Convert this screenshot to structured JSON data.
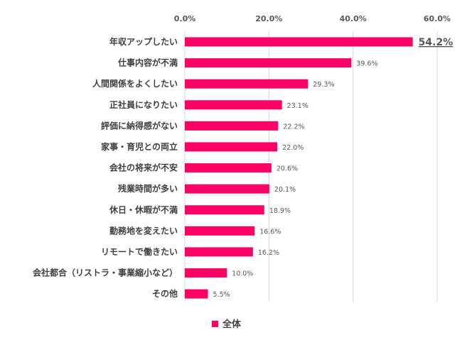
{
  "chart_data": {
    "type": "bar",
    "orientation": "horizontal",
    "categories": [
      "年収アップしたい",
      "仕事内容が不満",
      "人間関係をよくしたい",
      "正社員になりたい",
      "評価に納得感がない",
      "家事・育児との両立",
      "会社の将来が不安",
      "残業時間が多い",
      "休日・休暇が不満",
      "勤務地を変えたい",
      "リモートで働きたい",
      "会社都合（リストラ・事業縮小など）",
      "その他"
    ],
    "series": [
      {
        "name": "全体",
        "values": [
          54.2,
          39.6,
          29.3,
          23.1,
          22.2,
          22.0,
          20.6,
          20.1,
          18.9,
          16.6,
          16.2,
          10.0,
          5.5
        ],
        "labels": [
          "54.2%",
          "39.6%",
          "29.3%",
          "23.1%",
          "22.2%",
          "22.0%",
          "20.6%",
          "20.1%",
          "18.9%",
          "16.6%",
          "16.2%",
          "10.0%",
          "5.5%"
        ],
        "color": "#ff0066"
      }
    ],
    "xlim": [
      0,
      60
    ],
    "xticks": [
      0,
      20,
      40,
      60
    ],
    "xtick_labels": [
      "0.0%",
      "20.0%",
      "40.0%",
      "60.0%"
    ],
    "highlight_index": 0,
    "grid": true,
    "legend_position": "bottom",
    "axis_position": "top"
  },
  "colors": {
    "bar": "#ff0066",
    "grid": "#d9d9d9",
    "highlight_label": "#ff0066"
  }
}
